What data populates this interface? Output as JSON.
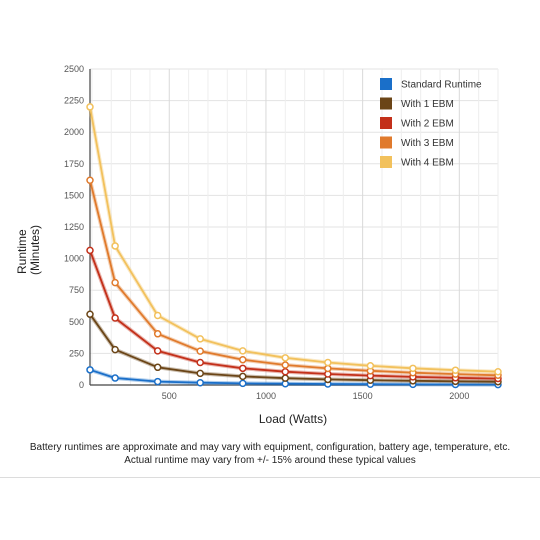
{
  "chart_data": {
    "type": "line",
    "xlabel": "Load (Watts)",
    "ylabel_lines": [
      "Runtime",
      "(Minutes)"
    ],
    "xlim": [
      90,
      2200
    ],
    "ylim": [
      0,
      2500
    ],
    "x_ticks": [
      500,
      1000,
      1500,
      2000
    ],
    "y_ticks": [
      0,
      250,
      500,
      750,
      1000,
      1250,
      1500,
      1750,
      2000,
      2250,
      2500
    ],
    "grid": true,
    "legend_position": "top-right",
    "x": [
      90,
      220,
      440,
      660,
      880,
      1100,
      1320,
      1540,
      1760,
      1980,
      2200
    ],
    "series": [
      {
        "name": "Standard Runtime",
        "color": "#1a6fc9",
        "values": [
          120,
          55,
          27,
          18,
          13,
          10,
          8,
          6,
          5,
          4,
          3
        ]
      },
      {
        "name": "With 1 EBM",
        "color": "#6b4517",
        "values": [
          560,
          280,
          140,
          92,
          68,
          54,
          44,
          38,
          33,
          29,
          26
        ]
      },
      {
        "name": "With 2 EBM",
        "color": "#c3301a",
        "values": [
          1065,
          530,
          270,
          178,
          132,
          105,
          87,
          74,
          64,
          57,
          51
        ]
      },
      {
        "name": "With 3 EBM",
        "color": "#e07a2c",
        "values": [
          1620,
          810,
          405,
          268,
          200,
          158,
          131,
          112,
          97,
          86,
          77
        ]
      },
      {
        "name": "With 4 EBM",
        "color": "#f2c15c",
        "values": [
          2200,
          1100,
          550,
          365,
          270,
          215,
          178,
          152,
          132,
          117,
          105
        ]
      }
    ]
  },
  "caption": {
    "line1": "Battery runtimes are approximate and may vary with equipment, configuration, battery age, temperature, etc.",
    "line2": "Actual runtime may vary from +/- 15% around these typical values"
  }
}
